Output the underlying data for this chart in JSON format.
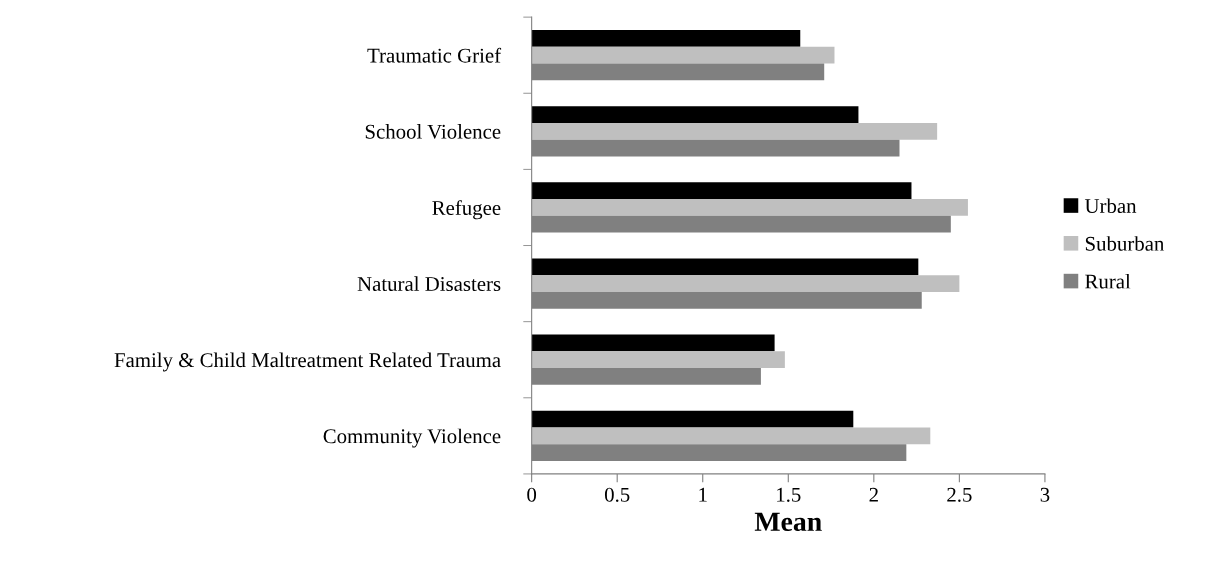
{
  "chart_data": {
    "type": "bar",
    "orientation": "horizontal",
    "xlabel": "Mean",
    "categories": [
      "Traumatic Grief",
      "School Violence",
      "Refugee",
      "Natural Disasters",
      "Family & Child Maltreatment Related Trauma",
      "Community Violence"
    ],
    "series": [
      {
        "name": "Urban",
        "color": "#000000",
        "values": [
          1.57,
          1.91,
          2.22,
          2.26,
          1.42,
          1.88
        ]
      },
      {
        "name": "Suburban",
        "color": "#bfbfbf",
        "values": [
          1.77,
          2.37,
          2.55,
          2.5,
          1.48,
          2.33
        ]
      },
      {
        "name": "Rural",
        "color": "#808080",
        "values": [
          1.71,
          2.15,
          2.45,
          2.28,
          1.34,
          2.19
        ]
      }
    ],
    "xlim": [
      0,
      3
    ],
    "xticks": [
      0,
      0.5,
      1,
      1.5,
      2,
      2.5,
      3
    ],
    "grid": false,
    "legend": "right"
  }
}
